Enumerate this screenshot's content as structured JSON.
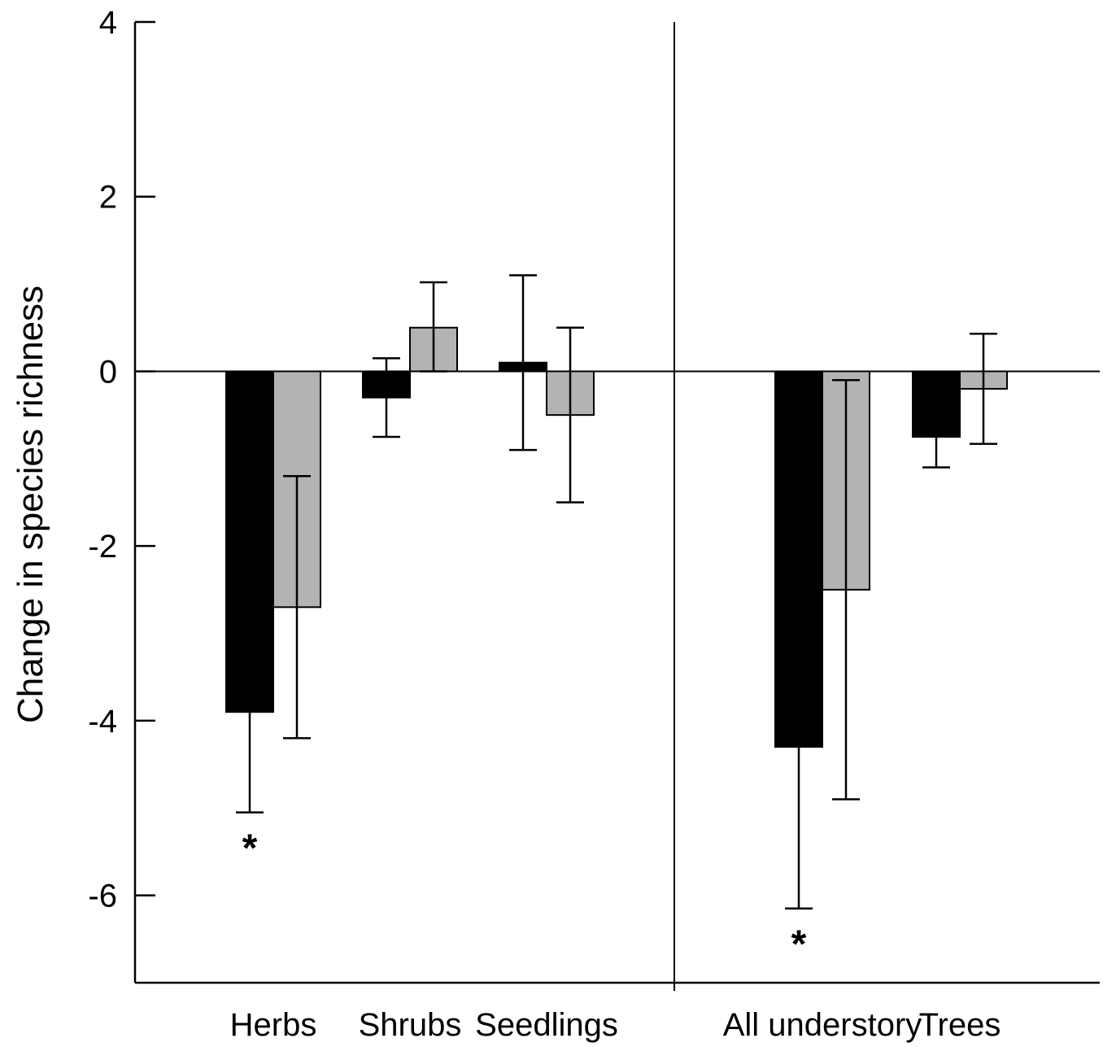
{
  "chart_data": {
    "type": "bar",
    "title": "",
    "xlabel": "",
    "ylabel": "Change in species richness",
    "ylim": [
      -7,
      4
    ],
    "yticks": [
      4,
      2,
      0,
      -2,
      -4,
      -6
    ],
    "ytick_labels": [
      "4",
      "2",
      "0",
      "-2",
      "-4",
      "-6"
    ],
    "grid": false,
    "legend": "none",
    "categories": [
      "Herbs",
      "Shrubs",
      "Seedlings",
      "All understory",
      "Trees"
    ],
    "series": [
      {
        "color": "#000000",
        "values": [
          -3.9,
          -0.3,
          0.1,
          -4.3,
          -0.75
        ],
        "err_low": [
          -5.05,
          -0.75,
          -0.9,
          -6.15,
          -1.1
        ],
        "err_high": [
          -3.9,
          0.15,
          1.1,
          -4.3,
          -0.75
        ]
      },
      {
        "color": "#b3b3b3",
        "values": [
          -2.7,
          0.5,
          -0.5,
          -2.5,
          -0.2
        ],
        "err_low": [
          -4.2,
          0.0,
          -1.5,
          -4.9,
          -0.83
        ],
        "err_high": [
          -1.2,
          1.02,
          0.5,
          -0.1,
          0.43
        ]
      }
    ],
    "annotations": [
      {
        "text": "*",
        "category": "Herbs",
        "series": 0
      },
      {
        "text": "*",
        "category": "All understory",
        "series": 0
      }
    ]
  }
}
